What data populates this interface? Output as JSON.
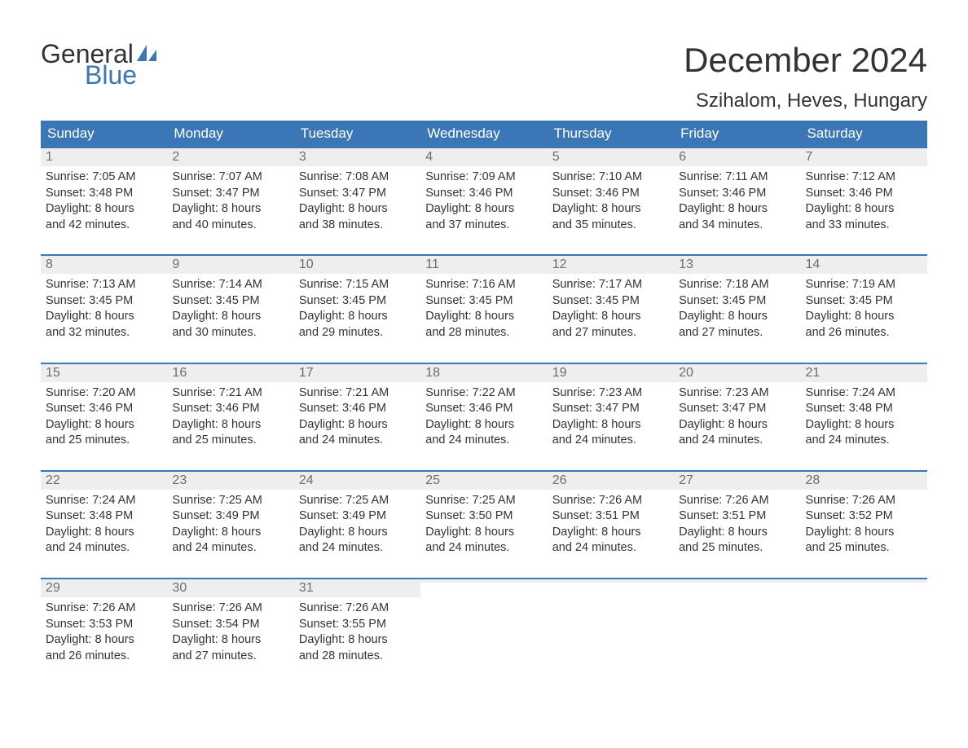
{
  "colors": {
    "header_bg": "#3b76b6",
    "header_text": "#ffffff",
    "daynum_bg": "#eeeeee",
    "daynum_text": "#6d6d6d",
    "body_text": "#333333",
    "week_border": "#3b76b6",
    "page_bg": "#ffffff",
    "logo_blue": "#3b76b6",
    "logo_dark": "#333333"
  },
  "typography": {
    "month_title_fontsize": 42,
    "location_fontsize": 24,
    "weekday_fontsize": 17,
    "daynum_fontsize": 16,
    "cell_fontsize": 14.5,
    "font_family": "Arial"
  },
  "logo": {
    "top": "General",
    "bottom": "Blue"
  },
  "title": "December 2024",
  "location": "Szihalom, Heves, Hungary",
  "weekdays": [
    "Sunday",
    "Monday",
    "Tuesday",
    "Wednesday",
    "Thursday",
    "Friday",
    "Saturday"
  ],
  "weeks": [
    [
      {
        "num": "1",
        "sunrise": "Sunrise: 7:05 AM",
        "sunset": "Sunset: 3:48 PM",
        "d1": "Daylight: 8 hours",
        "d2": "and 42 minutes."
      },
      {
        "num": "2",
        "sunrise": "Sunrise: 7:07 AM",
        "sunset": "Sunset: 3:47 PM",
        "d1": "Daylight: 8 hours",
        "d2": "and 40 minutes."
      },
      {
        "num": "3",
        "sunrise": "Sunrise: 7:08 AM",
        "sunset": "Sunset: 3:47 PM",
        "d1": "Daylight: 8 hours",
        "d2": "and 38 minutes."
      },
      {
        "num": "4",
        "sunrise": "Sunrise: 7:09 AM",
        "sunset": "Sunset: 3:46 PM",
        "d1": "Daylight: 8 hours",
        "d2": "and 37 minutes."
      },
      {
        "num": "5",
        "sunrise": "Sunrise: 7:10 AM",
        "sunset": "Sunset: 3:46 PM",
        "d1": "Daylight: 8 hours",
        "d2": "and 35 minutes."
      },
      {
        "num": "6",
        "sunrise": "Sunrise: 7:11 AM",
        "sunset": "Sunset: 3:46 PM",
        "d1": "Daylight: 8 hours",
        "d2": "and 34 minutes."
      },
      {
        "num": "7",
        "sunrise": "Sunrise: 7:12 AM",
        "sunset": "Sunset: 3:46 PM",
        "d1": "Daylight: 8 hours",
        "d2": "and 33 minutes."
      }
    ],
    [
      {
        "num": "8",
        "sunrise": "Sunrise: 7:13 AM",
        "sunset": "Sunset: 3:45 PM",
        "d1": "Daylight: 8 hours",
        "d2": "and 32 minutes."
      },
      {
        "num": "9",
        "sunrise": "Sunrise: 7:14 AM",
        "sunset": "Sunset: 3:45 PM",
        "d1": "Daylight: 8 hours",
        "d2": "and 30 minutes."
      },
      {
        "num": "10",
        "sunrise": "Sunrise: 7:15 AM",
        "sunset": "Sunset: 3:45 PM",
        "d1": "Daylight: 8 hours",
        "d2": "and 29 minutes."
      },
      {
        "num": "11",
        "sunrise": "Sunrise: 7:16 AM",
        "sunset": "Sunset: 3:45 PM",
        "d1": "Daylight: 8 hours",
        "d2": "and 28 minutes."
      },
      {
        "num": "12",
        "sunrise": "Sunrise: 7:17 AM",
        "sunset": "Sunset: 3:45 PM",
        "d1": "Daylight: 8 hours",
        "d2": "and 27 minutes."
      },
      {
        "num": "13",
        "sunrise": "Sunrise: 7:18 AM",
        "sunset": "Sunset: 3:45 PM",
        "d1": "Daylight: 8 hours",
        "d2": "and 27 minutes."
      },
      {
        "num": "14",
        "sunrise": "Sunrise: 7:19 AM",
        "sunset": "Sunset: 3:45 PM",
        "d1": "Daylight: 8 hours",
        "d2": "and 26 minutes."
      }
    ],
    [
      {
        "num": "15",
        "sunrise": "Sunrise: 7:20 AM",
        "sunset": "Sunset: 3:46 PM",
        "d1": "Daylight: 8 hours",
        "d2": "and 25 minutes."
      },
      {
        "num": "16",
        "sunrise": "Sunrise: 7:21 AM",
        "sunset": "Sunset: 3:46 PM",
        "d1": "Daylight: 8 hours",
        "d2": "and 25 minutes."
      },
      {
        "num": "17",
        "sunrise": "Sunrise: 7:21 AM",
        "sunset": "Sunset: 3:46 PM",
        "d1": "Daylight: 8 hours",
        "d2": "and 24 minutes."
      },
      {
        "num": "18",
        "sunrise": "Sunrise: 7:22 AM",
        "sunset": "Sunset: 3:46 PM",
        "d1": "Daylight: 8 hours",
        "d2": "and 24 minutes."
      },
      {
        "num": "19",
        "sunrise": "Sunrise: 7:23 AM",
        "sunset": "Sunset: 3:47 PM",
        "d1": "Daylight: 8 hours",
        "d2": "and 24 minutes."
      },
      {
        "num": "20",
        "sunrise": "Sunrise: 7:23 AM",
        "sunset": "Sunset: 3:47 PM",
        "d1": "Daylight: 8 hours",
        "d2": "and 24 minutes."
      },
      {
        "num": "21",
        "sunrise": "Sunrise: 7:24 AM",
        "sunset": "Sunset: 3:48 PM",
        "d1": "Daylight: 8 hours",
        "d2": "and 24 minutes."
      }
    ],
    [
      {
        "num": "22",
        "sunrise": "Sunrise: 7:24 AM",
        "sunset": "Sunset: 3:48 PM",
        "d1": "Daylight: 8 hours",
        "d2": "and 24 minutes."
      },
      {
        "num": "23",
        "sunrise": "Sunrise: 7:25 AM",
        "sunset": "Sunset: 3:49 PM",
        "d1": "Daylight: 8 hours",
        "d2": "and 24 minutes."
      },
      {
        "num": "24",
        "sunrise": "Sunrise: 7:25 AM",
        "sunset": "Sunset: 3:49 PM",
        "d1": "Daylight: 8 hours",
        "d2": "and 24 minutes."
      },
      {
        "num": "25",
        "sunrise": "Sunrise: 7:25 AM",
        "sunset": "Sunset: 3:50 PM",
        "d1": "Daylight: 8 hours",
        "d2": "and 24 minutes."
      },
      {
        "num": "26",
        "sunrise": "Sunrise: 7:26 AM",
        "sunset": "Sunset: 3:51 PM",
        "d1": "Daylight: 8 hours",
        "d2": "and 24 minutes."
      },
      {
        "num": "27",
        "sunrise": "Sunrise: 7:26 AM",
        "sunset": "Sunset: 3:51 PM",
        "d1": "Daylight: 8 hours",
        "d2": "and 25 minutes."
      },
      {
        "num": "28",
        "sunrise": "Sunrise: 7:26 AM",
        "sunset": "Sunset: 3:52 PM",
        "d1": "Daylight: 8 hours",
        "d2": "and 25 minutes."
      }
    ],
    [
      {
        "num": "29",
        "sunrise": "Sunrise: 7:26 AM",
        "sunset": "Sunset: 3:53 PM",
        "d1": "Daylight: 8 hours",
        "d2": "and 26 minutes."
      },
      {
        "num": "30",
        "sunrise": "Sunrise: 7:26 AM",
        "sunset": "Sunset: 3:54 PM",
        "d1": "Daylight: 8 hours",
        "d2": "and 27 minutes."
      },
      {
        "num": "31",
        "sunrise": "Sunrise: 7:26 AM",
        "sunset": "Sunset: 3:55 PM",
        "d1": "Daylight: 8 hours",
        "d2": "and 28 minutes."
      },
      {
        "empty": true
      },
      {
        "empty": true
      },
      {
        "empty": true
      },
      {
        "empty": true
      }
    ]
  ]
}
